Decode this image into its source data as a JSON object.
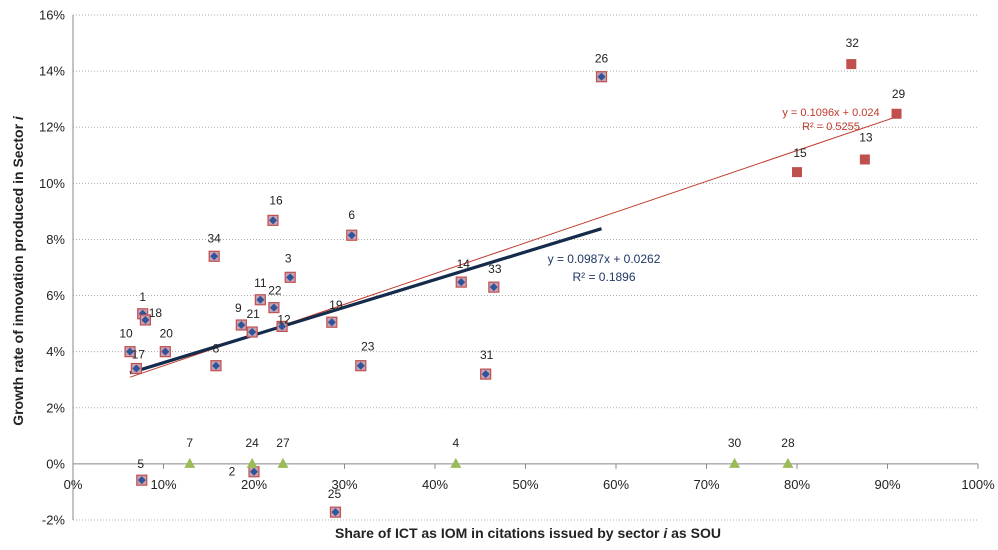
{
  "chart_data": {
    "type": "scatter",
    "xlabel": "Share of ICT as IOM in citations issued by sector",
    "xlabel_italic": "i",
    "xlabel_tail": "as SOU",
    "ylabel": "Growth rate of innovation produced in Sector",
    "ylabel_italic": "i",
    "xlim": [
      0,
      1
    ],
    "ylim": [
      -0.02,
      0.16
    ],
    "x_ticks": [
      0,
      0.1,
      0.2,
      0.3,
      0.4,
      0.5,
      0.6,
      0.7,
      0.8,
      0.9,
      1.0
    ],
    "x_tick_labels": [
      "0%",
      "10%",
      "20%",
      "30%",
      "40%",
      "50%",
      "60%",
      "70%",
      "80%",
      "90%",
      "100%"
    ],
    "y_ticks": [
      -0.02,
      0,
      0.02,
      0.04,
      0.06,
      0.08,
      0.1,
      0.12,
      0.14,
      0.16
    ],
    "y_tick_labels": [
      "-2%",
      "0%",
      "2%",
      "4%",
      "6%",
      "8%",
      "10%",
      "12%",
      "14%",
      "16%"
    ],
    "grid": "horizontal dotted",
    "series": [
      {
        "marker": "diamond-in-square",
        "color": "#2e5597",
        "border": "#c0504d",
        "points": [
          {
            "label": "1",
            "x": 0.077,
            "y": 0.0535
          },
          {
            "label": "18",
            "x": 0.08,
            "y": 0.0513
          },
          {
            "label": "10",
            "x": 0.063,
            "y": 0.04
          },
          {
            "label": "17",
            "x": 0.07,
            "y": 0.034
          },
          {
            "label": "20",
            "x": 0.102,
            "y": 0.04
          },
          {
            "label": "8",
            "x": 0.158,
            "y": 0.035
          },
          {
            "label": "34",
            "x": 0.156,
            "y": 0.074
          },
          {
            "label": "9",
            "x": 0.186,
            "y": 0.0495
          },
          {
            "label": "21",
            "x": 0.198,
            "y": 0.047
          },
          {
            "label": "11",
            "x": 0.207,
            "y": 0.0585
          },
          {
            "label": "22",
            "x": 0.222,
            "y": 0.0557
          },
          {
            "label": "12",
            "x": 0.231,
            "y": 0.049
          },
          {
            "label": "16",
            "x": 0.221,
            "y": 0.0868
          },
          {
            "label": "3",
            "x": 0.24,
            "y": 0.0665
          },
          {
            "label": "6",
            "x": 0.308,
            "y": 0.0815
          },
          {
            "label": "19",
            "x": 0.286,
            "y": 0.0505
          },
          {
            "label": "23",
            "x": 0.318,
            "y": 0.035
          },
          {
            "label": "14",
            "x": 0.429,
            "y": 0.0648
          },
          {
            "label": "33",
            "x": 0.465,
            "y": 0.063
          },
          {
            "label": "31",
            "x": 0.456,
            "y": 0.032
          },
          {
            "label": "26",
            "x": 0.584,
            "y": 0.138
          },
          {
            "label": "5",
            "x": 0.076,
            "y": -0.0058
          },
          {
            "label": "2",
            "x": 0.2,
            "y": -0.0028
          },
          {
            "label": "25",
            "x": 0.29,
            "y": -0.0172
          }
        ]
      },
      {
        "marker": "square",
        "color": "#c0504d",
        "points": [
          {
            "label": "32",
            "x": 0.86,
            "y": 0.1425
          },
          {
            "label": "29",
            "x": 0.91,
            "y": 0.1248
          },
          {
            "label": "15",
            "x": 0.8,
            "y": 0.104
          },
          {
            "label": "13",
            "x": 0.875,
            "y": 0.1085
          }
        ]
      },
      {
        "marker": "triangle",
        "color": "#9bbb59",
        "points": [
          {
            "label": "7",
            "x": 0.129,
            "y": 0
          },
          {
            "label": "24",
            "x": 0.198,
            "y": 0
          },
          {
            "label": "27",
            "x": 0.232,
            "y": 0
          },
          {
            "label": "4",
            "x": 0.423,
            "y": 0
          },
          {
            "label": "30",
            "x": 0.731,
            "y": 0
          },
          {
            "label": "28",
            "x": 0.79,
            "y": 0
          }
        ]
      }
    ],
    "trendlines": [
      {
        "slope": 0.0987,
        "intercept": 0.0262,
        "x_range": [
          0.063,
          0.584
        ],
        "color": "#142b4c",
        "equation": "y = 0.0987x + 0.0262",
        "r2": "R² = 0.1896"
      },
      {
        "slope": 0.1096,
        "intercept": 0.024,
        "x_range": [
          0.063,
          0.91
        ],
        "color": "#c0392b",
        "equation": "y = 0.1096x + 0.024",
        "r2": "R² = 0.5255"
      }
    ]
  }
}
